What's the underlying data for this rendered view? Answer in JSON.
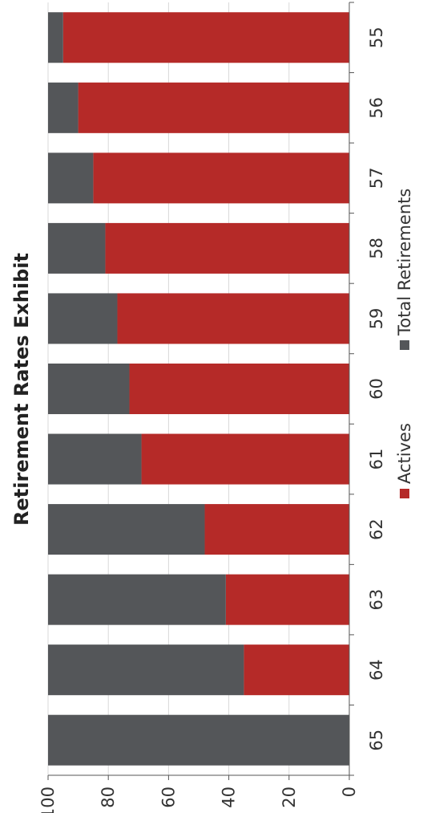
{
  "colors": {
    "actives": "#b52a28",
    "total_retirements": "#545659",
    "grid": "#d9d9d9",
    "axis": "#555555"
  },
  "chart_data": {
    "type": "bar",
    "stacked": true,
    "orientation": "rotated-90-clockwise",
    "title": "Retirement Rates Exhibit",
    "xlabel": "",
    "ylabel": "",
    "categories": [
      "55",
      "56",
      "57",
      "58",
      "59",
      "60",
      "61",
      "62",
      "63",
      "64",
      "65"
    ],
    "series": [
      {
        "name": "Actives",
        "color": "#b52a28",
        "values": [
          95,
          90,
          85,
          81,
          77,
          73,
          69,
          48,
          41,
          35,
          0
        ]
      },
      {
        "name": "Total Retirements",
        "color": "#545659",
        "values": [
          5,
          10,
          15,
          19,
          23,
          27,
          31,
          52,
          59,
          65,
          100
        ]
      }
    ],
    "ylim": [
      0,
      100
    ],
    "yticks": [
      "0",
      "20",
      "40",
      "60",
      "80",
      "100"
    ],
    "grid": true,
    "legend": {
      "position": "bottom",
      "entries": [
        "Actives",
        "Total Retirements"
      ]
    }
  }
}
